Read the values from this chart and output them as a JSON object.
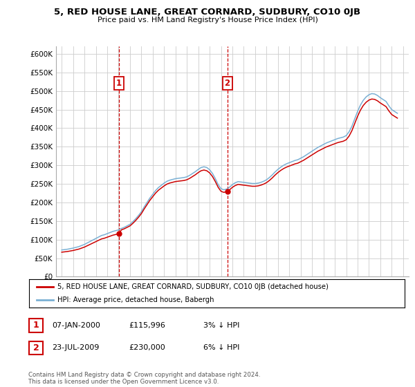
{
  "title": "5, RED HOUSE LANE, GREAT CORNARD, SUDBURY, CO10 0JB",
  "subtitle": "Price paid vs. HM Land Registry's House Price Index (HPI)",
  "xlim": [
    1994.5,
    2025.5
  ],
  "ylim": [
    0,
    620000
  ],
  "yticks": [
    0,
    50000,
    100000,
    150000,
    200000,
    250000,
    300000,
    350000,
    400000,
    450000,
    500000,
    550000,
    600000
  ],
  "ytick_labels": [
    "£0",
    "£50K",
    "£100K",
    "£150K",
    "£200K",
    "£250K",
    "£300K",
    "£350K",
    "£400K",
    "£450K",
    "£500K",
    "£550K",
    "£600K"
  ],
  "sale1_date": 2000.03,
  "sale1_price": 115996,
  "sale2_date": 2009.55,
  "sale2_price": 230000,
  "hpi_color": "#7ab0d4",
  "price_color": "#cc0000",
  "vline_color": "#cc0000",
  "grid_color": "#cccccc",
  "legend_line1": "5, RED HOUSE LANE, GREAT CORNARD, SUDBURY, CO10 0JB (detached house)",
  "legend_line2": "HPI: Average price, detached house, Babergh",
  "table_row1": [
    "1",
    "07-JAN-2000",
    "£115,996",
    "3% ↓ HPI"
  ],
  "table_row2": [
    "2",
    "23-JUL-2009",
    "£230,000",
    "6% ↓ HPI"
  ],
  "footnote": "Contains HM Land Registry data © Crown copyright and database right 2024.\nThis data is licensed under the Open Government Licence v3.0.",
  "hpi_years": [
    1995,
    1995.25,
    1995.5,
    1995.75,
    1996,
    1996.25,
    1996.5,
    1996.75,
    1997,
    1997.25,
    1997.5,
    1997.75,
    1998,
    1998.25,
    1998.5,
    1998.75,
    1999,
    1999.25,
    1999.5,
    1999.75,
    2000,
    2000.25,
    2000.5,
    2000.75,
    2001,
    2001.25,
    2001.5,
    2001.75,
    2002,
    2002.25,
    2002.5,
    2002.75,
    2003,
    2003.25,
    2003.5,
    2003.75,
    2004,
    2004.25,
    2004.5,
    2004.75,
    2005,
    2005.25,
    2005.5,
    2005.75,
    2006,
    2006.25,
    2006.5,
    2006.75,
    2007,
    2007.25,
    2007.5,
    2007.75,
    2008,
    2008.25,
    2008.5,
    2008.75,
    2009,
    2009.25,
    2009.5,
    2009.75,
    2010,
    2010.25,
    2010.5,
    2010.75,
    2011,
    2011.25,
    2011.5,
    2011.75,
    2012,
    2012.25,
    2012.5,
    2012.75,
    2013,
    2013.25,
    2013.5,
    2013.75,
    2014,
    2014.25,
    2014.5,
    2014.75,
    2015,
    2015.25,
    2015.5,
    2015.75,
    2016,
    2016.25,
    2016.5,
    2016.75,
    2017,
    2017.25,
    2017.5,
    2017.75,
    2018,
    2018.25,
    2018.5,
    2018.75,
    2019,
    2019.25,
    2019.5,
    2019.75,
    2020,
    2020.25,
    2020.5,
    2020.75,
    2021,
    2021.25,
    2021.5,
    2021.75,
    2022,
    2022.25,
    2022.5,
    2022.75,
    2023,
    2023.25,
    2023.5,
    2023.75,
    2024,
    2024.25,
    2024.5
  ],
  "hpi_values": [
    72000,
    73000,
    74000,
    75500,
    77000,
    79000,
    81000,
    84000,
    87000,
    91000,
    95000,
    99000,
    103000,
    107000,
    111000,
    113000,
    116000,
    119000,
    122000,
    124000,
    126000,
    130000,
    133000,
    137000,
    141000,
    148000,
    156000,
    165000,
    175000,
    188000,
    200000,
    212000,
    222000,
    232000,
    240000,
    246000,
    252000,
    257000,
    260000,
    262000,
    264000,
    265000,
    266000,
    267000,
    269000,
    273000,
    278000,
    283000,
    289000,
    294000,
    296000,
    294000,
    288000,
    278000,
    264000,
    248000,
    237000,
    234000,
    236000,
    241000,
    248000,
    253000,
    256000,
    255000,
    254000,
    253000,
    252000,
    251000,
    251000,
    252000,
    254000,
    257000,
    261000,
    267000,
    274000,
    282000,
    289000,
    295000,
    300000,
    304000,
    307000,
    310000,
    313000,
    315000,
    319000,
    323000,
    328000,
    333000,
    338000,
    343000,
    348000,
    352000,
    356000,
    360000,
    363000,
    366000,
    369000,
    372000,
    374000,
    376000,
    380000,
    390000,
    405000,
    425000,
    445000,
    462000,
    475000,
    484000,
    490000,
    493000,
    492000,
    488000,
    482000,
    477000,
    472000,
    460000,
    450000,
    445000,
    440000
  ]
}
